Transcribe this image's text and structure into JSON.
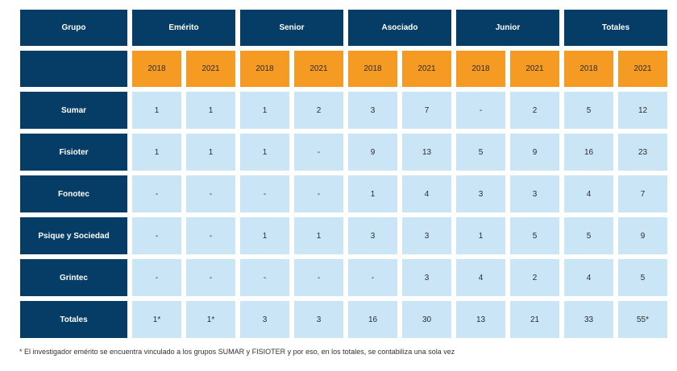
{
  "table": {
    "group_header": "Grupo",
    "categories": [
      "Emérito",
      "Senior",
      "Asociado",
      "Junior",
      "Totales"
    ],
    "years": [
      "2018",
      "2021",
      "2018",
      "2021",
      "2018",
      "2021",
      "2018",
      "2021",
      "2018",
      "2021"
    ],
    "rows": [
      {
        "name": "Sumar",
        "values": [
          "1",
          "1",
          "1",
          "2",
          "3",
          "7",
          "-",
          "2",
          "5",
          "12"
        ]
      },
      {
        "name": "Fisioter",
        "values": [
          "1",
          "1",
          "1",
          "-",
          "9",
          "13",
          "5",
          "9",
          "16",
          "23"
        ]
      },
      {
        "name": "Fonotec",
        "values": [
          "-",
          "-",
          "-",
          "-",
          "1",
          "4",
          "3",
          "3",
          "4",
          "7"
        ]
      },
      {
        "name": "Psique y Sociedad",
        "values": [
          "-",
          "-",
          "1",
          "1",
          "3",
          "3",
          "1",
          "5",
          "5",
          "9"
        ]
      },
      {
        "name": "Grintec",
        "values": [
          "-",
          "-",
          "-",
          "-",
          "-",
          "3",
          "4",
          "2",
          "4",
          "5"
        ]
      },
      {
        "name": "Totales",
        "values": [
          "1*",
          "1*",
          "3",
          "3",
          "16",
          "30",
          "13",
          "21",
          "33",
          "55*"
        ]
      }
    ]
  },
  "footnote": "* El investigador emérito se encuentra vinculado a los grupos SUMAR y FISIOTER y por eso, en los totales, se contabiliza una sola vez",
  "colors": {
    "header_blue": "#053d66",
    "year_orange": "#f59a23",
    "cell_light_blue": "#c9e5f6"
  }
}
